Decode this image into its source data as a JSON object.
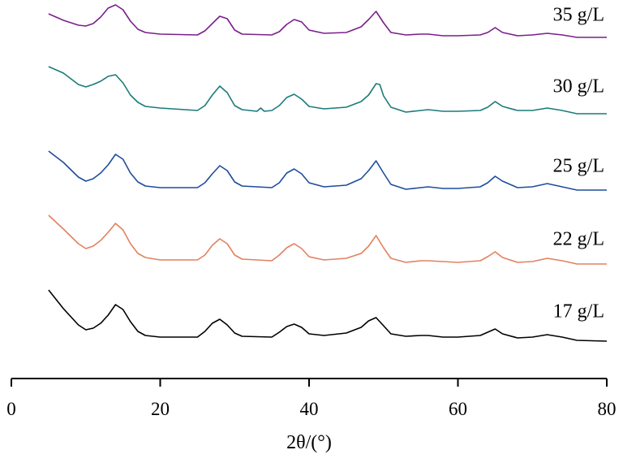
{
  "chart_data": {
    "type": "line",
    "title": "",
    "xlabel": "2θ/(°)",
    "ylabel": "",
    "xlim": [
      0,
      80
    ],
    "x_ticks": [
      0,
      20,
      40,
      60,
      80
    ],
    "y_axis_shown": false,
    "grid": false,
    "legend": "labels placed at the right end of each curve",
    "series": [
      {
        "name": "35 g/L",
        "color": "#7b1f8c",
        "points": [
          [
            5,
            17
          ],
          [
            7,
            25
          ],
          [
            9,
            31
          ],
          [
            10,
            32
          ],
          [
            11,
            29
          ],
          [
            12,
            21
          ],
          [
            13,
            10
          ],
          [
            14,
            6
          ],
          [
            15,
            12
          ],
          [
            16,
            26
          ],
          [
            17,
            36
          ],
          [
            18,
            40
          ],
          [
            20,
            42
          ],
          [
            25,
            43
          ],
          [
            26,
            38
          ],
          [
            27,
            29
          ],
          [
            28,
            20
          ],
          [
            29,
            23
          ],
          [
            30,
            37
          ],
          [
            31,
            42
          ],
          [
            35,
            43
          ],
          [
            36,
            39
          ],
          [
            37,
            30
          ],
          [
            38,
            24
          ],
          [
            39,
            27
          ],
          [
            40,
            37
          ],
          [
            42,
            41
          ],
          [
            45,
            40
          ],
          [
            47,
            33
          ],
          [
            48,
            24
          ],
          [
            49,
            14
          ],
          [
            50,
            28
          ],
          [
            51,
            40
          ],
          [
            53,
            43
          ],
          [
            55,
            42
          ],
          [
            56,
            42
          ],
          [
            58,
            44
          ],
          [
            60,
            44
          ],
          [
            63,
            43
          ],
          [
            64,
            40
          ],
          [
            65,
            34
          ],
          [
            66,
            40
          ],
          [
            68,
            44
          ],
          [
            70,
            43
          ],
          [
            72,
            41
          ],
          [
            74,
            43
          ],
          [
            76,
            46
          ],
          [
            80,
            46
          ]
        ]
      },
      {
        "name": "30 g/L",
        "color": "#1a7b79",
        "points": [
          [
            5,
            82
          ],
          [
            7,
            90
          ],
          [
            9,
            104
          ],
          [
            10,
            107
          ],
          [
            11,
            104
          ],
          [
            12,
            100
          ],
          [
            13,
            94
          ],
          [
            14,
            92
          ],
          [
            15,
            102
          ],
          [
            16,
            117
          ],
          [
            17,
            126
          ],
          [
            18,
            131
          ],
          [
            20,
            133
          ],
          [
            25,
            136
          ],
          [
            26,
            130
          ],
          [
            27,
            117
          ],
          [
            28,
            106
          ],
          [
            29,
            114
          ],
          [
            30,
            130
          ],
          [
            31,
            135
          ],
          [
            33,
            137
          ],
          [
            33.5,
            133
          ],
          [
            34,
            137
          ],
          [
            35,
            136
          ],
          [
            36,
            130
          ],
          [
            37,
            120
          ],
          [
            38,
            116
          ],
          [
            39,
            122
          ],
          [
            40,
            131
          ],
          [
            42,
            134
          ],
          [
            45,
            132
          ],
          [
            47,
            125
          ],
          [
            48,
            117
          ],
          [
            49,
            103
          ],
          [
            49.5,
            104
          ],
          [
            50,
            118
          ],
          [
            51,
            132
          ],
          [
            53,
            138
          ],
          [
            55,
            136
          ],
          [
            56,
            135
          ],
          [
            58,
            137
          ],
          [
            60,
            137
          ],
          [
            63,
            136
          ],
          [
            64,
            132
          ],
          [
            65,
            125
          ],
          [
            66,
            131
          ],
          [
            68,
            136
          ],
          [
            70,
            136
          ],
          [
            72,
            133
          ],
          [
            74,
            136
          ],
          [
            76,
            140
          ],
          [
            80,
            140
          ]
        ]
      },
      {
        "name": "25 g/L",
        "color": "#1f4c9e",
        "points": [
          [
            5,
            186
          ],
          [
            7,
            200
          ],
          [
            9,
            218
          ],
          [
            10,
            223
          ],
          [
            11,
            220
          ],
          [
            12,
            213
          ],
          [
            13,
            203
          ],
          [
            14,
            190
          ],
          [
            15,
            196
          ],
          [
            16,
            213
          ],
          [
            17,
            224
          ],
          [
            18,
            229
          ],
          [
            20,
            231
          ],
          [
            25,
            231
          ],
          [
            26,
            225
          ],
          [
            27,
            214
          ],
          [
            28,
            204
          ],
          [
            29,
            210
          ],
          [
            30,
            224
          ],
          [
            31,
            229
          ],
          [
            35,
            231
          ],
          [
            36,
            225
          ],
          [
            37,
            213
          ],
          [
            38,
            208
          ],
          [
            39,
            214
          ],
          [
            40,
            225
          ],
          [
            42,
            230
          ],
          [
            45,
            228
          ],
          [
            47,
            220
          ],
          [
            48,
            210
          ],
          [
            49,
            198
          ],
          [
            50,
            213
          ],
          [
            51,
            227
          ],
          [
            53,
            233
          ],
          [
            55,
            231
          ],
          [
            56,
            230
          ],
          [
            58,
            232
          ],
          [
            60,
            232
          ],
          [
            63,
            230
          ],
          [
            64,
            225
          ],
          [
            65,
            217
          ],
          [
            66,
            223
          ],
          [
            68,
            231
          ],
          [
            70,
            230
          ],
          [
            72,
            226
          ],
          [
            74,
            230
          ],
          [
            76,
            234
          ],
          [
            80,
            234
          ]
        ]
      },
      {
        "name": "22 g/L",
        "color": "#e38160",
        "points": [
          [
            5,
            265
          ],
          [
            7,
            282
          ],
          [
            9,
            300
          ],
          [
            10,
            306
          ],
          [
            11,
            303
          ],
          [
            12,
            296
          ],
          [
            13,
            286
          ],
          [
            14,
            275
          ],
          [
            15,
            283
          ],
          [
            16,
            300
          ],
          [
            17,
            312
          ],
          [
            18,
            317
          ],
          [
            20,
            320
          ],
          [
            25,
            320
          ],
          [
            26,
            314
          ],
          [
            27,
            302
          ],
          [
            28,
            294
          ],
          [
            29,
            300
          ],
          [
            30,
            314
          ],
          [
            31,
            319
          ],
          [
            35,
            321
          ],
          [
            36,
            314
          ],
          [
            37,
            305
          ],
          [
            38,
            300
          ],
          [
            39,
            306
          ],
          [
            40,
            316
          ],
          [
            42,
            320
          ],
          [
            45,
            318
          ],
          [
            47,
            312
          ],
          [
            48,
            303
          ],
          [
            49,
            290
          ],
          [
            50,
            305
          ],
          [
            51,
            318
          ],
          [
            53,
            323
          ],
          [
            55,
            321
          ],
          [
            56,
            321
          ],
          [
            58,
            322
          ],
          [
            60,
            323
          ],
          [
            63,
            321
          ],
          [
            64,
            316
          ],
          [
            65,
            310
          ],
          [
            66,
            317
          ],
          [
            68,
            323
          ],
          [
            70,
            322
          ],
          [
            72,
            318
          ],
          [
            74,
            321
          ],
          [
            76,
            325
          ],
          [
            80,
            325
          ]
        ]
      },
      {
        "name": "17 g/L",
        "color": "#000000",
        "points": [
          [
            5,
            357
          ],
          [
            7,
            380
          ],
          [
            9,
            400
          ],
          [
            10,
            406
          ],
          [
            11,
            404
          ],
          [
            12,
            398
          ],
          [
            13,
            388
          ],
          [
            14,
            375
          ],
          [
            15,
            381
          ],
          [
            16,
            396
          ],
          [
            17,
            408
          ],
          [
            18,
            413
          ],
          [
            20,
            415
          ],
          [
            25,
            415
          ],
          [
            26,
            408
          ],
          [
            27,
            398
          ],
          [
            28,
            393
          ],
          [
            29,
            400
          ],
          [
            30,
            410
          ],
          [
            31,
            414
          ],
          [
            35,
            415
          ],
          [
            36,
            409
          ],
          [
            37,
            402
          ],
          [
            38,
            399
          ],
          [
            39,
            403
          ],
          [
            40,
            411
          ],
          [
            42,
            413
          ],
          [
            45,
            410
          ],
          [
            47,
            403
          ],
          [
            48,
            395
          ],
          [
            49,
            391
          ],
          [
            50,
            401
          ],
          [
            51,
            411
          ],
          [
            53,
            414
          ],
          [
            55,
            413
          ],
          [
            56,
            413
          ],
          [
            58,
            415
          ],
          [
            60,
            415
          ],
          [
            63,
            413
          ],
          [
            64,
            409
          ],
          [
            65,
            405
          ],
          [
            66,
            411
          ],
          [
            68,
            416
          ],
          [
            70,
            415
          ],
          [
            72,
            412
          ],
          [
            74,
            415
          ],
          [
            76,
            419
          ],
          [
            80,
            420
          ]
        ]
      }
    ]
  }
}
